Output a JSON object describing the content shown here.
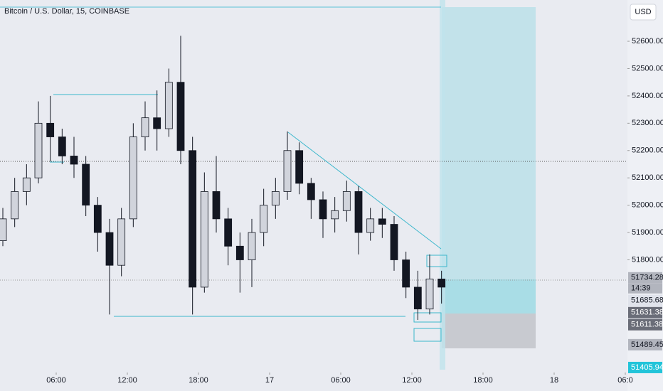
{
  "chart_data": {
    "type": "candlestick",
    "title": "Bitcoin / U.S. Dollar, 15, COINBASE",
    "currency": "USD",
    "x": [
      1.5,
      2.5,
      3.5,
      4.5,
      5.5,
      6.5,
      7.5,
      8.5,
      9.5,
      10.5,
      11.5,
      12.5,
      13.5,
      14.5,
      15.5,
      16.5,
      17.5,
      18.5,
      19.5,
      20.5,
      21.5,
      22.5,
      23.5,
      24.5,
      25.5,
      26.5,
      27.5,
      28.5,
      29.5,
      30.5,
      31.5,
      32.5,
      33.5,
      34.5,
      35.5,
      36.5,
      37.5,
      38.5
    ],
    "open": [
      51870,
      51950,
      52050,
      52100,
      52300,
      52250,
      52180,
      52150,
      52000,
      51900,
      51780,
      51950,
      52250,
      52320,
      52280,
      52450,
      52200,
      51700,
      52050,
      51950,
      51850,
      51800,
      51900,
      52000,
      52050,
      52200,
      52080,
      52020,
      51950,
      51980,
      52050,
      51900,
      51950,
      51930,
      51800,
      51700,
      51620,
      51730
    ],
    "high": [
      51990,
      52100,
      52150,
      52380,
      52400,
      52280,
      52250,
      52180,
      52030,
      51950,
      51990,
      52300,
      52380,
      52420,
      52500,
      52620,
      52250,
      52120,
      52180,
      51990,
      51900,
      51950,
      52060,
      52100,
      52270,
      52230,
      52100,
      52050,
      52030,
      52090,
      52070,
      51990,
      51990,
      51960,
      51830,
      51760,
      51820,
      51760
    ],
    "low": [
      51850,
      51920,
      52000,
      52080,
      52160,
      52150,
      52100,
      51960,
      51830,
      51600,
      51740,
      51920,
      52200,
      52200,
      52250,
      52150,
      51600,
      51680,
      51900,
      51780,
      51680,
      51700,
      51850,
      51950,
      52020,
      52040,
      51950,
      51880,
      51900,
      51940,
      51820,
      51870,
      51880,
      51760,
      51660,
      51580,
      51600,
      51640
    ],
    "close": [
      51950,
      52050,
      52100,
      52300,
      52250,
      52180,
      52150,
      52000,
      51900,
      51780,
      51950,
      52250,
      52320,
      52280,
      52450,
      52200,
      51700,
      52050,
      51950,
      51850,
      51800,
      51900,
      52000,
      52050,
      52200,
      52080,
      52020,
      51950,
      51980,
      52050,
      51900,
      51950,
      51930,
      51800,
      51700,
      51620,
      51730,
      51700
    ],
    "up_color": "#d1d4dc",
    "down_color": "#131722",
    "xlim": [
      1.26,
      54.18
    ],
    "xticks": [
      {
        "value": 6,
        "label": "06:00"
      },
      {
        "value": 12,
        "label": "12:00"
      },
      {
        "value": 18,
        "label": "18:00"
      },
      {
        "value": 24,
        "label": "17"
      },
      {
        "value": 30,
        "label": "06:00"
      },
      {
        "value": 36,
        "label": "12:00"
      },
      {
        "value": 42,
        "label": "18:00"
      },
      {
        "value": 48,
        "label": "18"
      },
      {
        "value": 54,
        "label": "06:0"
      }
    ],
    "ylim": [
      51398,
      52725
    ],
    "yticks": [
      {
        "value": 51800,
        "label": "51800.00"
      },
      {
        "value": 51900,
        "label": "51900.00"
      },
      {
        "value": 52000,
        "label": "52000.00"
      },
      {
        "value": 52100,
        "label": "52100.00"
      },
      {
        "value": 52200,
        "label": "52200.00"
      },
      {
        "value": 52300,
        "label": "52300.00"
      },
      {
        "value": 52400,
        "label": "52400.00"
      },
      {
        "value": 52500,
        "label": "52500.00"
      },
      {
        "value": 52600,
        "label": "52600.00"
      }
    ],
    "grid": false,
    "price_markers": [
      51734.28,
      51685.68,
      51631.38,
      51611.38,
      51489.45,
      51405.94
    ],
    "price_marker_colors": [
      "#b2b5be",
      "#e0e3eb",
      "#6a6d78",
      "#6a6d78",
      "#b2b5be",
      "#22c4d9"
    ],
    "countdown": "14:39"
  }
}
